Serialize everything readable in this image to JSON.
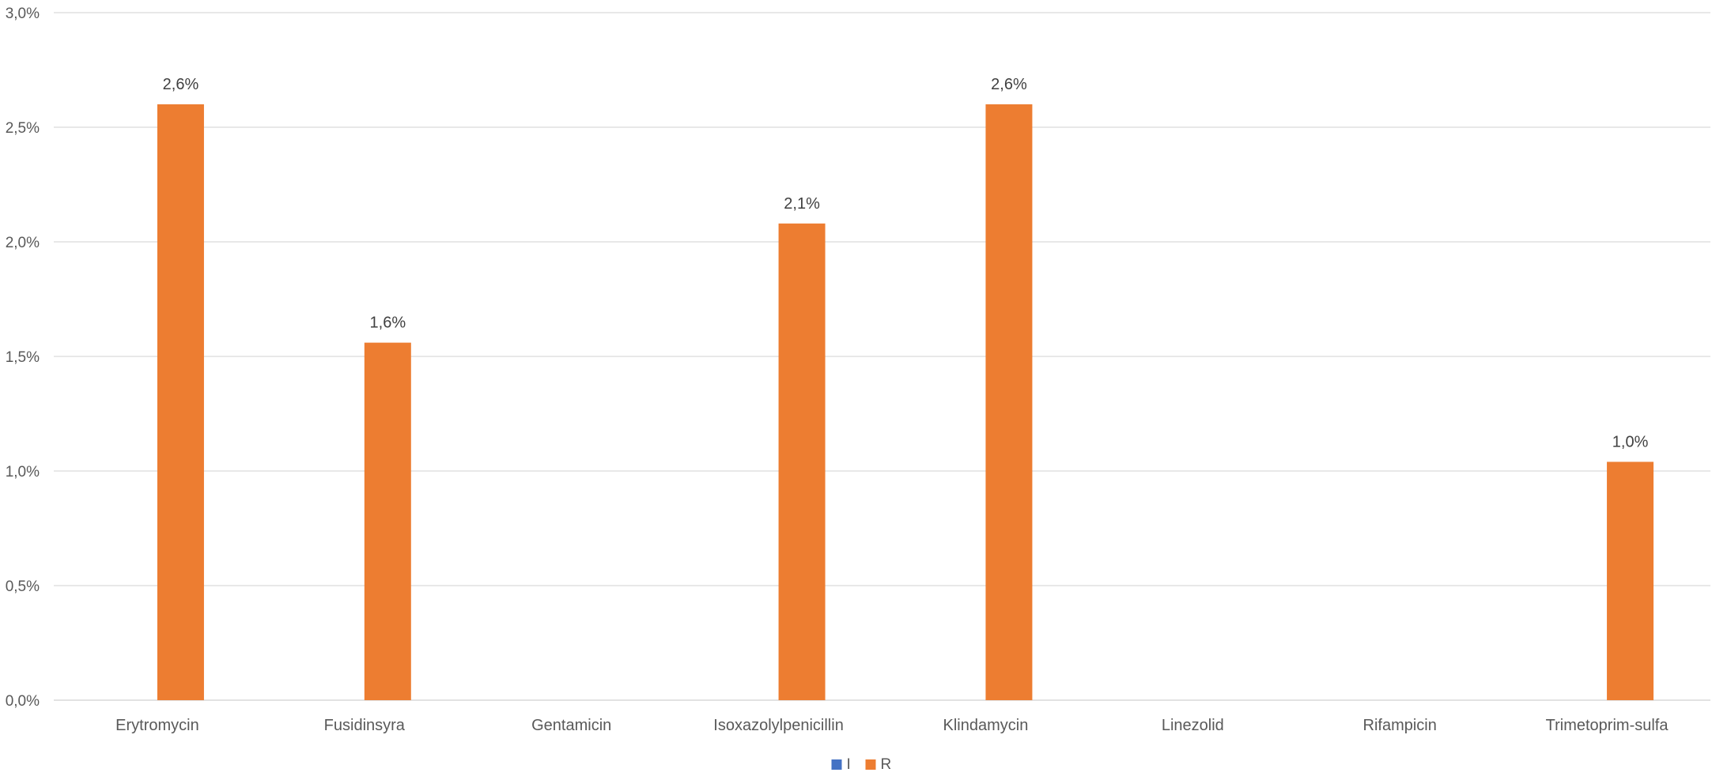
{
  "chart_data": {
    "type": "bar",
    "title": "",
    "xlabel": "",
    "ylabel": "",
    "categories": [
      "Erytromycin",
      "Fusidinsyra",
      "Gentamicin",
      "Isoxazolylpenicillin",
      "Klindamycin",
      "Linezolid",
      "Rifampicin",
      "Trimetoprim-sulfa"
    ],
    "series": [
      {
        "name": "I",
        "color": "#4472c4",
        "values": [
          0,
          0,
          0,
          0,
          0,
          0,
          0,
          0
        ],
        "labels": [
          "",
          "",
          "",
          "",
          "",
          "",
          "",
          ""
        ]
      },
      {
        "name": "R",
        "color": "#ed7d31",
        "values": [
          2.6,
          1.56,
          0,
          2.08,
          2.6,
          0,
          0,
          1.04
        ],
        "labels": [
          "2,6%",
          "1,6%",
          "",
          "2,1%",
          "2,6%",
          "",
          "",
          "1,0%"
        ]
      }
    ],
    "ylim": [
      0,
      3.0
    ],
    "yticks": [
      0,
      0.5,
      1.0,
      1.5,
      2.0,
      2.5,
      3.0
    ],
    "ytick_labels": [
      "0,0%",
      "0,5%",
      "1,0%",
      "1,5%",
      "2,0%",
      "2,5%",
      "3,0%"
    ],
    "grid": true,
    "legend": "bottom-center"
  }
}
